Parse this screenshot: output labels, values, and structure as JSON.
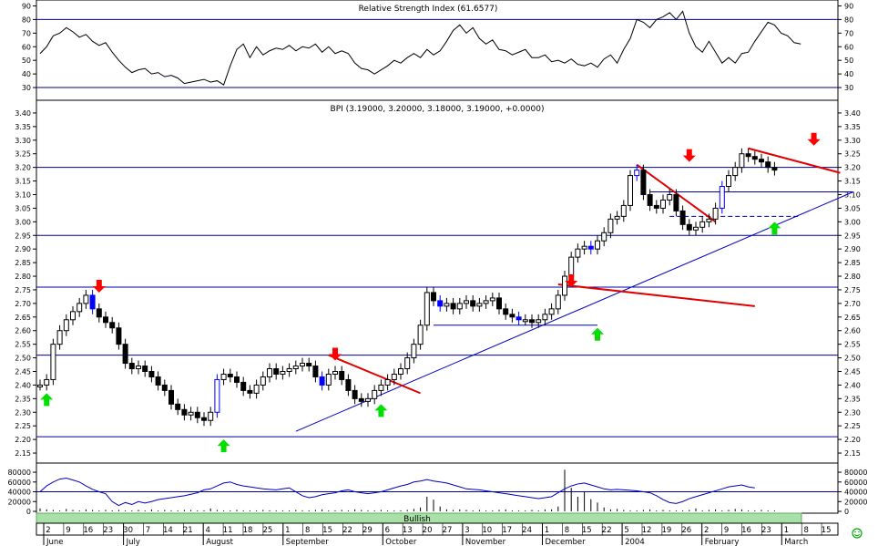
{
  "rsi": {
    "title": "Relative Strength Index (61.6577)",
    "ticks": [
      "90",
      "80",
      "70",
      "60",
      "50",
      "40",
      "30"
    ],
    "tick_values": [
      90,
      80,
      70,
      60,
      50,
      40,
      30
    ],
    "ylim": [
      22,
      93
    ],
    "ref_lines": [
      80,
      30
    ],
    "line": [
      55,
      60,
      68,
      70,
      74,
      71,
      67,
      69,
      64,
      61,
      63,
      56,
      50,
      45,
      41,
      43,
      44,
      40,
      41,
      38,
      39,
      37,
      33,
      34,
      35,
      36,
      34,
      35,
      32,
      46,
      58,
      62,
      52,
      60,
      54,
      57,
      59,
      58,
      61,
      57,
      60,
      59,
      62,
      56,
      60,
      55,
      57,
      55,
      48,
      44,
      43,
      40,
      43,
      46,
      50,
      48,
      52,
      55,
      52,
      58,
      54,
      57,
      64,
      72,
      76,
      70,
      74,
      66,
      62,
      65,
      58,
      57,
      54,
      56,
      58,
      52,
      52,
      54,
      49,
      50,
      48,
      51,
      47,
      46,
      48,
      45,
      51,
      54,
      48,
      58,
      66,
      80,
      78,
      74,
      80,
      82,
      85,
      80,
      86,
      70,
      60,
      56,
      64,
      56,
      48,
      52,
      48,
      55,
      56,
      64,
      71,
      78,
      76,
      70,
      68,
      63,
      62
    ]
  },
  "price": {
    "title": "BPI (3.19000, 3.20000, 3.18000, 3.19000, +0.0000)",
    "ticks": [
      "3.40",
      "3.35",
      "3.30",
      "3.25",
      "3.20",
      "3.15",
      "3.10",
      "3.05",
      "3.00",
      "2.95",
      "2.90",
      "2.85",
      "2.80",
      "2.75",
      "2.70",
      "2.65",
      "2.60",
      "2.55",
      "2.50",
      "2.45",
      "2.40",
      "2.35",
      "2.30",
      "2.25",
      "2.20",
      "2.15"
    ],
    "tick_values": [
      3.4,
      3.35,
      3.3,
      3.25,
      3.2,
      3.15,
      3.1,
      3.05,
      3.0,
      2.95,
      2.9,
      2.85,
      2.8,
      2.75,
      2.7,
      2.65,
      2.6,
      2.55,
      2.5,
      2.45,
      2.4,
      2.35,
      2.3,
      2.25,
      2.2,
      2.15
    ],
    "ylim": [
      2.12,
      3.44
    ],
    "closes": [
      2.4,
      2.42,
      2.55,
      2.6,
      2.64,
      2.67,
      2.7,
      2.73,
      2.68,
      2.65,
      2.63,
      2.61,
      2.55,
      2.48,
      2.46,
      2.47,
      2.45,
      2.43,
      2.4,
      2.38,
      2.33,
      2.31,
      2.29,
      2.3,
      2.28,
      2.27,
      2.3,
      2.42,
      2.44,
      2.43,
      2.41,
      2.38,
      2.37,
      2.4,
      2.43,
      2.46,
      2.44,
      2.45,
      2.46,
      2.47,
      2.48,
      2.47,
      2.43,
      2.4,
      2.44,
      2.45,
      2.42,
      2.38,
      2.35,
      2.34,
      2.35,
      2.38,
      2.4,
      2.42,
      2.44,
      2.46,
      2.5,
      2.55,
      2.62,
      2.74,
      2.71,
      2.69,
      2.7,
      2.68,
      2.7,
      2.71,
      2.69,
      2.7,
      2.71,
      2.72,
      2.68,
      2.66,
      2.65,
      2.64,
      2.64,
      2.63,
      2.64,
      2.66,
      2.68,
      2.73,
      2.8,
      2.87,
      2.9,
      2.91,
      2.9,
      2.93,
      2.96,
      3.01,
      3.02,
      3.06,
      3.17,
      3.19,
      3.1,
      3.06,
      3.05,
      3.08,
      3.1,
      3.04,
      2.99,
      2.97,
      2.98,
      3.0,
      3.01,
      3.05,
      3.13,
      3.17,
      3.2,
      3.25,
      3.24,
      3.23,
      3.22,
      3.2,
      3.19
    ],
    "blue_bars": [
      8,
      27,
      43,
      61,
      73,
      84,
      91,
      104
    ],
    "horizontal_lines": [
      3.2,
      2.95,
      2.76,
      2.51,
      2.21
    ],
    "red_trendlines": [
      {
        "from": {
          "i": 79,
          "v": 2.77
        },
        "to": {
          "i": 109,
          "v": 2.69
        }
      },
      {
        "from": {
          "i": 44,
          "v": 2.51
        },
        "to": {
          "i": 58,
          "v": 2.37
        }
      },
      {
        "from": {
          "i": 91,
          "v": 3.21
        },
        "to": {
          "i": 103,
          "v": 3.0
        }
      },
      {
        "from": {
          "i": 108,
          "v": 3.27
        },
        "to": {
          "i": 122,
          "v": 3.18
        }
      }
    ],
    "blue_trendline": {
      "from": {
        "i": 39,
        "v": 2.23
      },
      "to": {
        "i": 124,
        "v": 3.11
      }
    },
    "support_boxes": [
      {
        "from": {
          "i": 60,
          "v": 2.62
        },
        "to": {
          "i": 85,
          "v": 2.62
        }
      },
      {
        "from": {
          "i": 93,
          "v": 3.11
        },
        "to": {
          "i": 124,
          "v": 3.11
        }
      }
    ],
    "dashed_line": {
      "from": {
        "i": 96,
        "v": 3.02
      },
      "to": {
        "i": 116,
        "v": 3.02
      }
    },
    "down_arrows": [
      {
        "i": 9,
        "v": 2.74
      },
      {
        "i": 45,
        "v": 2.49
      },
      {
        "i": 81,
        "v": 2.76
      },
      {
        "i": 99,
        "v": 3.22
      },
      {
        "i": 118,
        "v": 3.28
      }
    ],
    "up_arrows": [
      {
        "i": 1,
        "v": 2.37
      },
      {
        "i": 28,
        "v": 2.2
      },
      {
        "i": 52,
        "v": 2.33
      },
      {
        "i": 85,
        "v": 2.61
      },
      {
        "i": 112,
        "v": 3.0
      }
    ]
  },
  "volume": {
    "ticks": [
      "80000",
      "60000",
      "40000",
      "20000",
      "0"
    ],
    "tick_values": [
      80000,
      60000,
      40000,
      20000,
      0
    ],
    "ylim": [
      0,
      95000
    ],
    "line": [
      40000,
      52000,
      60000,
      66000,
      68000,
      64000,
      60000,
      52000,
      45000,
      40000,
      36000,
      20000,
      12000,
      18000,
      14000,
      20000,
      17000,
      20000,
      24000,
      26000,
      28000,
      30000,
      32000,
      35000,
      38000,
      44000,
      46000,
      52000,
      58000,
      60000,
      55000,
      52000,
      50000,
      48000,
      46000,
      45000,
      44000,
      46000,
      48000,
      40000,
      32000,
      28000,
      30000,
      34000,
      36000,
      38000,
      42000,
      44000,
      40000,
      38000,
      36000,
      38000,
      40000,
      44000,
      48000,
      52000,
      55000,
      60000,
      62000,
      65000,
      62000,
      60000,
      58000,
      54000,
      50000,
      46000,
      45000,
      44000,
      42000,
      40000,
      38000,
      36000,
      34000,
      32000,
      30000,
      28000,
      26000,
      28000,
      30000,
      38000,
      46000,
      52000,
      56000,
      58000,
      54000,
      50000,
      46000,
      44000,
      45000,
      44000,
      43000,
      42000,
      40000,
      38000,
      32000,
      24000,
      18000,
      16000,
      20000,
      26000,
      30000,
      34000,
      38000,
      42000,
      46000,
      50000,
      52000,
      54000,
      50000,
      48000
    ],
    "bars": [
      6000,
      4000,
      3000,
      2000,
      5000,
      3000,
      2000,
      4000,
      3000,
      2000,
      3000,
      2000,
      3000,
      2000,
      2000,
      3000,
      2000,
      4000,
      2000,
      3000,
      2000,
      2000,
      3000,
      3000,
      2000,
      2000,
      6000,
      3000,
      2000,
      2000,
      3000,
      2000,
      2000,
      2000,
      3000,
      2000,
      2000,
      2000,
      2000,
      3000,
      2000,
      2000,
      3000,
      4000,
      2000,
      2000,
      3000,
      2000,
      4000,
      3000,
      2000,
      2000,
      3000,
      2000,
      2000,
      2000,
      3000,
      5000,
      8000,
      30000,
      24000,
      10000,
      4000,
      3000,
      4000,
      3000,
      2000,
      3000,
      2000,
      2000,
      3000,
      4000,
      2000,
      2000,
      2000,
      3000,
      2000,
      4000,
      4000,
      10000,
      85000,
      48000,
      30000,
      40000,
      25000,
      18000,
      8000,
      4000,
      5000,
      3000,
      2000,
      2000,
      3000,
      4000,
      2000,
      3000,
      2000,
      2000,
      2000,
      3000,
      6000,
      2000,
      3000,
      4000,
      2000,
      3000,
      5000,
      4000,
      2000,
      2000,
      3000,
      2000,
      2000
    ]
  },
  "signal": {
    "label": "Bullish",
    "color": "#a8e0a8"
  },
  "xaxis": {
    "days": [
      "2",
      "9",
      "16",
      "23",
      "30",
      "7",
      "14",
      "21",
      "4",
      "11",
      "18",
      "25",
      "1",
      "8",
      "15",
      "22",
      "29",
      "6",
      "13",
      "20",
      "27",
      "3",
      "10",
      "17",
      "24",
      "1",
      "8",
      "15",
      "22",
      "5",
      "12",
      "19",
      "26",
      "2",
      "9",
      "16",
      "23",
      "1",
      "8",
      "15"
    ],
    "months": [
      "June",
      "July",
      "August",
      "September",
      "October",
      "November",
      "December",
      "2004",
      "February",
      "March"
    ],
    "month_day_index": [
      0,
      4,
      8,
      12,
      17,
      21,
      25,
      29,
      33,
      37
    ]
  },
  "status_icon": "smiley-icon",
  "colors": {
    "bar": "#000000",
    "blue_bar": "#0000ff",
    "grid": "#0000a0",
    "arrow_up": "#00e000",
    "arrow_down": "#ff0000",
    "trend_red": "#e00000",
    "trend_blue": "#0000c0"
  }
}
